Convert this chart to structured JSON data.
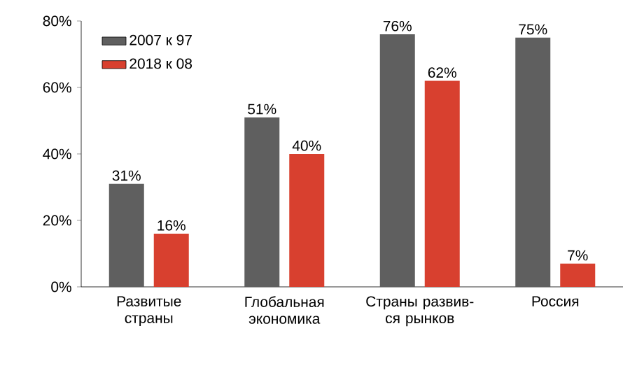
{
  "chart_data": {
    "type": "bar",
    "categories": [
      "Развитые страны",
      "Глобальная экономика",
      "Страны развив-ся рынков",
      "Россия"
    ],
    "series": [
      {
        "name": "2007 к 97",
        "color": "#5f5f5f",
        "values": [
          31,
          51,
          76,
          75
        ],
        "value_labels": [
          "31%",
          "51%",
          "76%",
          "75%"
        ]
      },
      {
        "name": "2018 к 08",
        "color": "#d8402f",
        "values": [
          16,
          40,
          62,
          7
        ],
        "value_labels": [
          "16%",
          "40%",
          "62%",
          "7%"
        ]
      }
    ],
    "ylim": [
      0,
      80
    ],
    "yticks": [
      {
        "value": 0,
        "label": "0%"
      },
      {
        "value": 20,
        "label": "20%"
      },
      {
        "value": 40,
        "label": "40%"
      },
      {
        "value": 60,
        "label": "60%"
      },
      {
        "value": 80,
        "label": "80%"
      }
    ],
    "legend": "top left",
    "grid": false
  }
}
